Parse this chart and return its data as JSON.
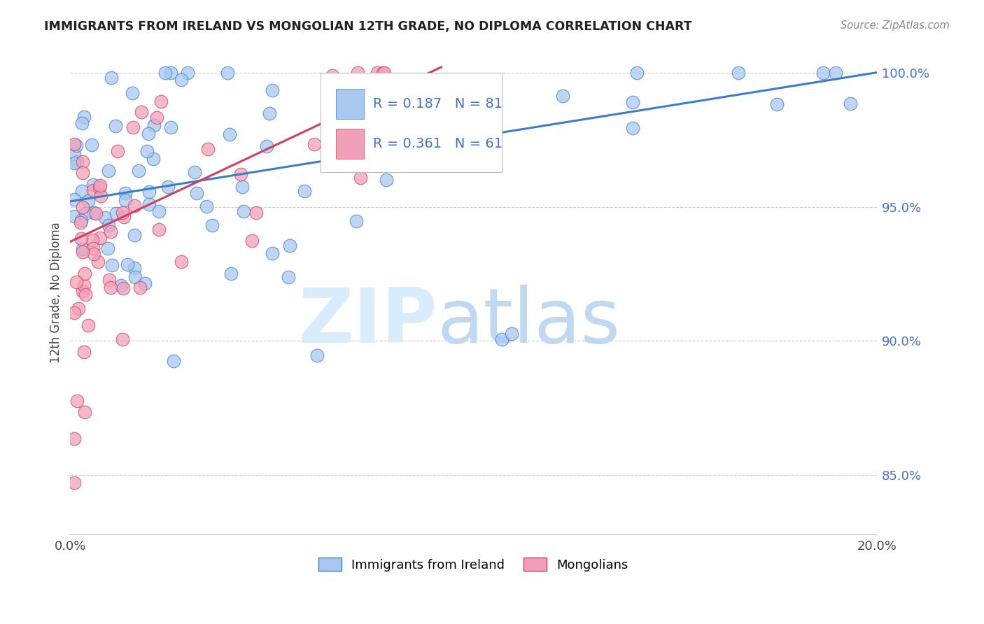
{
  "title": "IMMIGRANTS FROM IRELAND VS MONGOLIAN 12TH GRADE, NO DIPLOMA CORRELATION CHART",
  "source": "Source: ZipAtlas.com",
  "ylabel": "12th Grade, No Diploma",
  "legend_label1": "Immigrants from Ireland",
  "legend_label2": "Mongolians",
  "R1": "0.187",
  "N1": "81",
  "R2": "0.361",
  "N2": "61",
  "color_blue": "#A8C8F0",
  "color_pink": "#F0A0B8",
  "color_blue_line": "#3A7EC8",
  "color_pink_line": "#D04060",
  "color_blue_text": "#4472C4",
  "color_grid": "#CCCCCC",
  "blue_line_x": [
    0.0,
    0.2
  ],
  "blue_line_y": [
    0.952,
    1.0
  ],
  "pink_line_x": [
    0.0,
    0.092
  ],
  "pink_line_y": [
    0.937,
    1.002
  ],
  "xlim": [
    0.0,
    0.2
  ],
  "ylim": [
    0.828,
    1.008
  ],
  "ytick_vals": [
    0.85,
    0.9,
    0.95,
    1.0
  ],
  "ytick_labels": [
    "85.0%",
    "90.0%",
    "95.0%",
    "100.0%"
  ]
}
